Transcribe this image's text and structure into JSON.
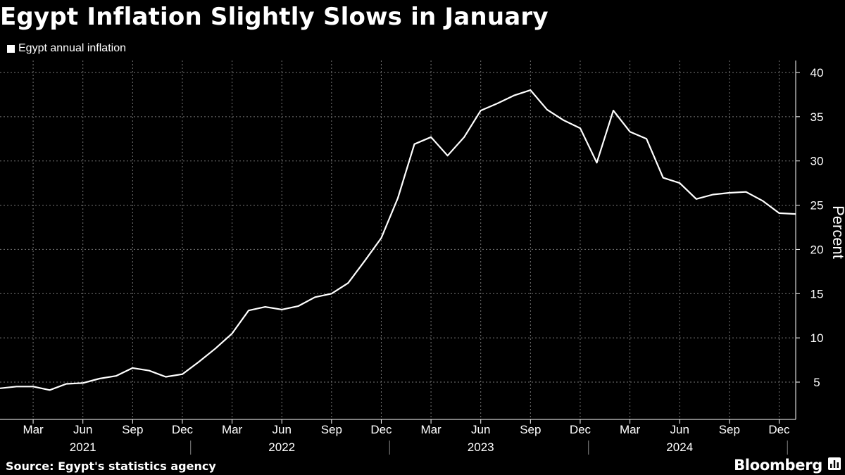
{
  "header": {
    "title": "Egypt Inflation Slightly Slows in January"
  },
  "legend": {
    "label": "Egypt annual inflation"
  },
  "footer": {
    "source": "Source: Egypt's statistics agency",
    "brand": "Bloomberg"
  },
  "colors": {
    "background": "#000000",
    "line": "#ffffff",
    "grid": "#777777"
  },
  "chart_data": {
    "type": "line",
    "title": "Egypt Inflation Slightly Slows in January",
    "ylabel": "Percent",
    "ylim": [
      0,
      40
    ],
    "yticks": [
      5,
      10,
      15,
      20,
      25,
      30,
      35,
      40
    ],
    "grid": true,
    "legend_position": "top-left",
    "x_range": [
      "2021-01",
      "2025-01"
    ],
    "month_ticks": [
      {
        "x": "2021-03",
        "label": "Mar"
      },
      {
        "x": "2021-06",
        "label": "Jun"
      },
      {
        "x": "2021-09",
        "label": "Sep"
      },
      {
        "x": "2021-12",
        "label": "Dec"
      },
      {
        "x": "2022-03",
        "label": "Mar"
      },
      {
        "x": "2022-06",
        "label": "Jun"
      },
      {
        "x": "2022-09",
        "label": "Sep"
      },
      {
        "x": "2022-12",
        "label": "Dec"
      },
      {
        "x": "2023-03",
        "label": "Mar"
      },
      {
        "x": "2023-06",
        "label": "Jun"
      },
      {
        "x": "2023-09",
        "label": "Sep"
      },
      {
        "x": "2023-12",
        "label": "Dec"
      },
      {
        "x": "2024-03",
        "label": "Mar"
      },
      {
        "x": "2024-06",
        "label": "Jun"
      },
      {
        "x": "2024-09",
        "label": "Sep"
      },
      {
        "x": "2024-12",
        "label": "Dec"
      }
    ],
    "year_labels": [
      {
        "label": "2021",
        "center": "2021-06"
      },
      {
        "label": "2022",
        "center": "2022-06"
      },
      {
        "label": "2023",
        "center": "2023-06"
      },
      {
        "label": "2024",
        "center": "2024-06"
      }
    ],
    "year_separators": [
      "2021-12",
      "2022-12",
      "2023-12",
      "2024-12"
    ],
    "series": [
      {
        "name": "Egypt annual inflation",
        "x": [
          "2021-01",
          "2021-02",
          "2021-03",
          "2021-04",
          "2021-05",
          "2021-06",
          "2021-07",
          "2021-08",
          "2021-09",
          "2021-10",
          "2021-11",
          "2021-12",
          "2022-01",
          "2022-02",
          "2022-03",
          "2022-04",
          "2022-05",
          "2022-06",
          "2022-07",
          "2022-08",
          "2022-09",
          "2022-10",
          "2022-11",
          "2022-12",
          "2023-01",
          "2023-02",
          "2023-03",
          "2023-04",
          "2023-05",
          "2023-06",
          "2023-07",
          "2023-08",
          "2023-09",
          "2023-10",
          "2023-11",
          "2023-12",
          "2024-01",
          "2024-02",
          "2024-03",
          "2024-04",
          "2024-05",
          "2024-06",
          "2024-07",
          "2024-08",
          "2024-09",
          "2024-10",
          "2024-11",
          "2024-12",
          "2025-01"
        ],
        "values": [
          4.3,
          4.5,
          4.5,
          4.1,
          4.8,
          4.9,
          5.4,
          5.7,
          6.6,
          6.3,
          5.6,
          5.9,
          7.3,
          8.8,
          10.5,
          13.1,
          13.5,
          13.2,
          13.6,
          14.6,
          15.0,
          16.2,
          18.7,
          21.3,
          25.8,
          31.9,
          32.7,
          30.6,
          32.7,
          35.7,
          36.5,
          37.4,
          38.0,
          35.8,
          34.6,
          33.7,
          29.8,
          35.7,
          33.3,
          32.5,
          28.1,
          27.5,
          25.7,
          26.2,
          26.4,
          26.5,
          25.5,
          24.1,
          24.0
        ]
      }
    ]
  }
}
